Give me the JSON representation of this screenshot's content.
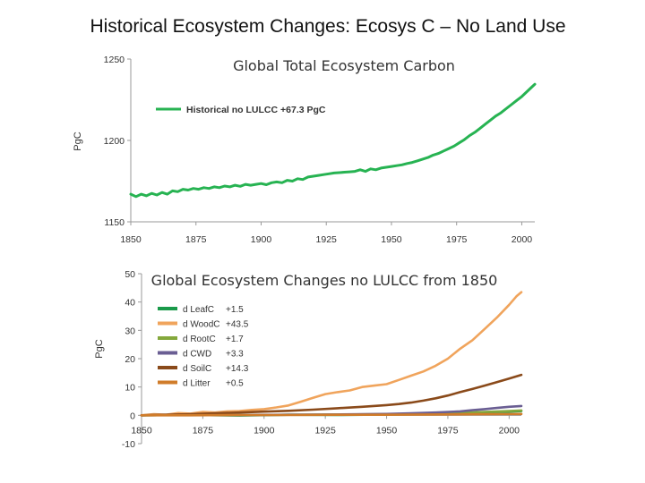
{
  "slide_title": "Historical Ecosystem Changes: Ecosys C – No Land Use",
  "colors": {
    "green": "#27b352",
    "d_LeafC": "#1a9a4a",
    "d_WoodC": "#f0a45c",
    "d_RootC": "#84a83c",
    "d_CWD": "#6a5e93",
    "d_SoilC": "#8a4a1a",
    "d_Litter": "#d07c2a"
  },
  "chart_data": [
    {
      "type": "line",
      "title": "Global Total Ecosystem Carbon",
      "ylabel": "PgC",
      "xlim": [
        1850,
        2005
      ],
      "ylim": [
        1150,
        1250
      ],
      "xticks": [
        "1850",
        "1875",
        "1900",
        "1925",
        "1950",
        "1975",
        "2000"
      ],
      "yticks": [
        "1150",
        "1200",
        "1250"
      ],
      "legend_position": "top-left",
      "series": [
        {
          "name": "Historical no LULCC +67.3 PgC",
          "color": "#27b352",
          "x": [
            1850,
            1852,
            1854,
            1856,
            1858,
            1860,
            1862,
            1864,
            1866,
            1868,
            1870,
            1872,
            1874,
            1876,
            1878,
            1880,
            1882,
            1884,
            1886,
            1888,
            1890,
            1892,
            1894,
            1896,
            1898,
            1900,
            1902,
            1904,
            1906,
            1908,
            1910,
            1912,
            1914,
            1916,
            1918,
            1920,
            1922,
            1924,
            1926,
            1928,
            1930,
            1932,
            1934,
            1936,
            1938,
            1940,
            1942,
            1944,
            1946,
            1948,
            1950,
            1952,
            1954,
            1956,
            1958,
            1960,
            1962,
            1964,
            1966,
            1968,
            1970,
            1972,
            1974,
            1976,
            1978,
            1980,
            1982,
            1984,
            1986,
            1988,
            1990,
            1992,
            1994,
            1996,
            1998,
            2000,
            2002,
            2004,
            2005
          ],
          "y": [
            1167,
            1165.5,
            1167,
            1166,
            1167.5,
            1166.5,
            1168,
            1167,
            1169,
            1168.5,
            1170,
            1169.5,
            1170.5,
            1170,
            1171,
            1170.5,
            1171.5,
            1171,
            1172,
            1171.5,
            1172.5,
            1171.8,
            1173,
            1172.5,
            1173,
            1173.5,
            1172.8,
            1174,
            1174.5,
            1174,
            1175.5,
            1175,
            1176.5,
            1176,
            1177.5,
            1178,
            1178.5,
            1179,
            1179.5,
            1180,
            1180.2,
            1180.5,
            1180.7,
            1181,
            1182,
            1181,
            1182.5,
            1182,
            1183,
            1183.5,
            1184,
            1184.5,
            1185,
            1185.8,
            1186.5,
            1187.5,
            1188.5,
            1189.5,
            1191,
            1192,
            1193.5,
            1195,
            1196.5,
            1198.5,
            1200.5,
            1203,
            1205,
            1207.5,
            1210,
            1212.5,
            1215,
            1217,
            1219.5,
            1222,
            1224.5,
            1227,
            1230,
            1233,
            1234.5
          ]
        }
      ]
    },
    {
      "type": "line",
      "title": "Global Ecosystem Changes no LULCC from 1850",
      "ylabel": "PgC",
      "xlim": [
        1850,
        2005
      ],
      "ylim": [
        -10,
        50
      ],
      "xticks": [
        "1850",
        "1875",
        "1900",
        "1925",
        "1950",
        "1975",
        "2000"
      ],
      "yticks": [
        "-10",
        "0",
        "10",
        "20",
        "30",
        "40",
        "50"
      ],
      "legend_position": "top-left",
      "series": [
        {
          "name": "d LeafC",
          "value_label": "+1.5",
          "color": "#1a9a4a",
          "x": [
            1850,
            1870,
            1890,
            1910,
            1930,
            1950,
            1960,
            1970,
            1980,
            1990,
            2000,
            2005
          ],
          "y": [
            0,
            0.1,
            -0.1,
            0.2,
            0.1,
            0.3,
            0.4,
            0.6,
            0.8,
            1.1,
            1.3,
            1.5
          ]
        },
        {
          "name": "d WoodC",
          "value_label": "+43.5",
          "color": "#f0a45c",
          "x": [
            1850,
            1855,
            1860,
            1865,
            1870,
            1875,
            1880,
            1885,
            1890,
            1895,
            1900,
            1905,
            1910,
            1915,
            1920,
            1925,
            1930,
            1935,
            1940,
            1945,
            1950,
            1955,
            1960,
            1965,
            1970,
            1975,
            1980,
            1985,
            1990,
            1995,
            2000,
            2003,
            2005
          ],
          "y": [
            0,
            0.4,
            0.2,
            0.8,
            0.6,
            1.2,
            1.0,
            1.4,
            1.5,
            1.9,
            2.2,
            2.8,
            3.5,
            4.8,
            6.2,
            7.5,
            8.2,
            8.8,
            10.0,
            10.5,
            11.0,
            12.5,
            14.0,
            15.5,
            17.5,
            20.0,
            23.5,
            26.5,
            30.5,
            34.5,
            39.0,
            42.0,
            43.5
          ]
        },
        {
          "name": "d RootC",
          "value_label": "+1.7",
          "color": "#84a83c",
          "x": [
            1850,
            1870,
            1890,
            1910,
            1930,
            1950,
            1960,
            1970,
            1980,
            1990,
            2000,
            2005
          ],
          "y": [
            0,
            0.1,
            0.1,
            0.2,
            0.3,
            0.4,
            0.5,
            0.7,
            0.9,
            1.2,
            1.5,
            1.7
          ]
        },
        {
          "name": "d CWD",
          "value_label": "+3.3",
          "color": "#6a5e93",
          "x": [
            1850,
            1870,
            1890,
            1910,
            1930,
            1950,
            1960,
            1970,
            1980,
            1985,
            1990,
            1995,
            2000,
            2005
          ],
          "y": [
            0,
            0.1,
            0.1,
            0.2,
            0.3,
            0.5,
            0.7,
            1.0,
            1.4,
            1.8,
            2.2,
            2.6,
            3.0,
            3.3
          ]
        },
        {
          "name": "d SoilC",
          "value_label": "+14.3",
          "color": "#8a4a1a",
          "x": [
            1850,
            1860,
            1870,
            1880,
            1890,
            1900,
            1910,
            1920,
            1930,
            1940,
            1950,
            1955,
            1960,
            1965,
            1970,
            1975,
            1980,
            1985,
            1990,
            1995,
            2000,
            2005
          ],
          "y": [
            0,
            0.2,
            0.4,
            0.7,
            1.0,
            1.3,
            1.6,
            2.0,
            2.5,
            3.0,
            3.6,
            4.0,
            4.5,
            5.2,
            6.0,
            7.0,
            8.2,
            9.3,
            10.5,
            11.7,
            13.0,
            14.3
          ]
        },
        {
          "name": "d Litter",
          "value_label": "+0.5",
          "color": "#d07c2a",
          "x": [
            1850,
            1870,
            1890,
            1910,
            1930,
            1950,
            1970,
            1990,
            2005
          ],
          "y": [
            0,
            0.0,
            0.1,
            0.1,
            0.2,
            0.2,
            0.3,
            0.4,
            0.5
          ]
        }
      ]
    }
  ]
}
